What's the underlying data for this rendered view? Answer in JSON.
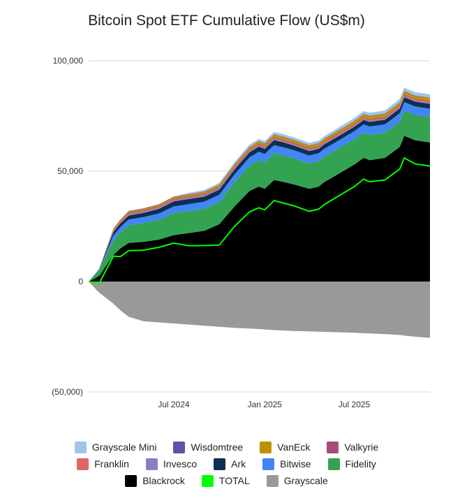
{
  "chart_data": {
    "type": "area",
    "title": "Bitcoin Spot ETF Cumulative Flow (US$m)",
    "xlabel": "",
    "ylabel": "",
    "ylim": [
      -50000,
      100000
    ],
    "y_ticks": [
      {
        "value": 100000,
        "label": "100,000"
      },
      {
        "value": 50000,
        "label": "50,000"
      },
      {
        "value": 0,
        "label": "0"
      },
      {
        "value": -50000,
        "label": "(50,000)"
      }
    ],
    "x_ticks": [
      "Jul 2024",
      "Jan 2025",
      "Jul 2025"
    ],
    "x": [
      "2024-01-11",
      "2024-02-01",
      "2024-03-01",
      "2024-03-15",
      "2024-04-01",
      "2024-05-01",
      "2024-06-01",
      "2024-07-01",
      "2024-08-01",
      "2024-09-01",
      "2024-10-01",
      "2024-11-01",
      "2024-12-01",
      "2024-12-20",
      "2025-01-01",
      "2025-01-20",
      "2025-02-10",
      "2025-03-01",
      "2025-04-01",
      "2025-04-20",
      "2025-05-01",
      "2025-06-01",
      "2025-07-01",
      "2025-07-20",
      "2025-08-01",
      "2025-09-01",
      "2025-10-01",
      "2025-10-10",
      "2025-11-01",
      "2025-12-01"
    ],
    "grid": true,
    "legend_position": "bottom",
    "series": [
      {
        "name": "Blackrock",
        "color": "#000000",
        "values": [
          0,
          2500,
          12000,
          15000,
          17500,
          18000,
          19000,
          21000,
          22000,
          23000,
          26000,
          34000,
          41000,
          43000,
          42000,
          46000,
          45000,
          44000,
          42000,
          43000,
          45000,
          49000,
          53000,
          56000,
          55000,
          56000,
          61000,
          66000,
          64000,
          63000
        ]
      },
      {
        "name": "Fidelity",
        "color": "#33a352",
        "values": [
          0,
          2500,
          6500,
          7200,
          8000,
          8500,
          9000,
          10000,
          10000,
          10000,
          10000,
          11000,
          11500,
          12000,
          12000,
          12000,
          12000,
          11800,
          11500,
          11500,
          11500,
          11500,
          11500,
          11500,
          11500,
          11500,
          11500,
          11500,
          11500,
          11500
        ]
      },
      {
        "name": "Bitwise",
        "color": "#4285f4",
        "values": [
          0,
          300,
          2300,
          2400,
          2600,
          2700,
          2800,
          3000,
          3100,
          3200,
          3300,
          3500,
          3700,
          3800,
          3800,
          3800,
          3700,
          3700,
          3600,
          3600,
          3600,
          3600,
          3600,
          3700,
          3700,
          3700,
          3700,
          3800,
          3800,
          3800
        ]
      },
      {
        "name": "Ark",
        "color": "#0b2f55",
        "values": [
          0,
          150,
          1600,
          1700,
          1800,
          1900,
          2100,
          2300,
          2300,
          2300,
          2300,
          2300,
          2300,
          2300,
          2300,
          2300,
          2200,
          2100,
          2000,
          2000,
          2000,
          2000,
          2000,
          2000,
          2100,
          2100,
          2200,
          2200,
          2200,
          2200
        ]
      },
      {
        "name": "Invesco",
        "color": "#8e7cc3",
        "values": [
          0,
          50,
          300,
          350,
          400,
          400,
          400,
          400,
          400,
          400,
          400,
          400,
          400,
          400,
          400,
          400,
          400,
          400,
          400,
          400,
          400,
          400,
          400,
          400,
          400,
          400,
          400,
          400,
          400,
          400
        ]
      },
      {
        "name": "Franklin",
        "color": "#e06666",
        "values": [
          0,
          50,
          300,
          350,
          400,
          400,
          400,
          400,
          400,
          400,
          400,
          400,
          400,
          400,
          400,
          400,
          400,
          400,
          400,
          400,
          400,
          400,
          400,
          400,
          400,
          400,
          400,
          400,
          400,
          400
        ]
      },
      {
        "name": "Valkyrie",
        "color": "#a64d79",
        "values": [
          0,
          50,
          300,
          350,
          400,
          400,
          400,
          400,
          400,
          400,
          400,
          400,
          400,
          400,
          400,
          400,
          400,
          400,
          400,
          400,
          400,
          400,
          400,
          400,
          400,
          400,
          400,
          400,
          400,
          400
        ]
      },
      {
        "name": "VanEck",
        "color": "#bf9000",
        "values": [
          0,
          100,
          600,
          650,
          700,
          700,
          700,
          800,
          800,
          900,
          900,
          1000,
          1100,
          1100,
          1100,
          1200,
          1200,
          1200,
          1200,
          1200,
          1200,
          1300,
          1300,
          1300,
          1400,
          1400,
          1400,
          1400,
          1400,
          1400
        ]
      },
      {
        "name": "Wisdomtree",
        "color": "#674ea7",
        "values": [
          0,
          0,
          100,
          100,
          200,
          200,
          200,
          200,
          200,
          200,
          200,
          200,
          200,
          200,
          200,
          200,
          200,
          200,
          200,
          200,
          200,
          200,
          200,
          200,
          200,
          200,
          200,
          200,
          200,
          200
        ]
      },
      {
        "name": "Grayscale Mini",
        "color": "#9fc5e8",
        "values": [
          0,
          0,
          0,
          0,
          0,
          0,
          0,
          0,
          600,
          700,
          800,
          900,
          1000,
          1000,
          1100,
          1100,
          1100,
          1100,
          1100,
          1100,
          1100,
          1200,
          1300,
          1300,
          1400,
          1400,
          1500,
          1500,
          1500,
          1500
        ]
      },
      {
        "name": "Grayscale",
        "color": "#999999",
        "values": [
          0,
          -5000,
          -10000,
          -13000,
          -16000,
          -18000,
          -18500,
          -19000,
          -19500,
          -20000,
          -20500,
          -21000,
          -21300,
          -21500,
          -21700,
          -22000,
          -22200,
          -22400,
          -22600,
          -22700,
          -22800,
          -23000,
          -23200,
          -23400,
          -23500,
          -23800,
          -24200,
          -24500,
          -25000,
          -25500
        ]
      }
    ],
    "total": {
      "name": "TOTAL",
      "color": "#00ff00",
      "values": [
        0,
        -1000,
        11500,
        11300,
        14000,
        14200,
        15500,
        17400,
        16200,
        16300,
        16500,
        25000,
        31500,
        33400,
        32500,
        36700,
        35400,
        34300,
        31800,
        32800,
        34800,
        39000,
        43000,
        46400,
        45200,
        46000,
        51000,
        56000,
        53300,
        52300
      ]
    }
  },
  "legend": {
    "rows": [
      [
        {
          "name": "Grayscale Mini",
          "color": "#9fc5e8"
        },
        {
          "name": "Wisdomtree",
          "color": "#674ea7"
        },
        {
          "name": "VanEck",
          "color": "#bf9000"
        },
        {
          "name": "Valkyrie",
          "color": "#a64d79"
        }
      ],
      [
        {
          "name": "Franklin",
          "color": "#e06666"
        },
        {
          "name": "Invesco",
          "color": "#8e7cc3"
        },
        {
          "name": "Ark",
          "color": "#0b2f55"
        },
        {
          "name": "Bitwise",
          "color": "#4285f4"
        },
        {
          "name": "Fidelity",
          "color": "#33a352"
        }
      ],
      [
        {
          "name": "Blackrock",
          "color": "#000000"
        },
        {
          "name": "TOTAL",
          "color": "#00ff00"
        },
        {
          "name": "Grayscale",
          "color": "#999999"
        }
      ]
    ]
  }
}
